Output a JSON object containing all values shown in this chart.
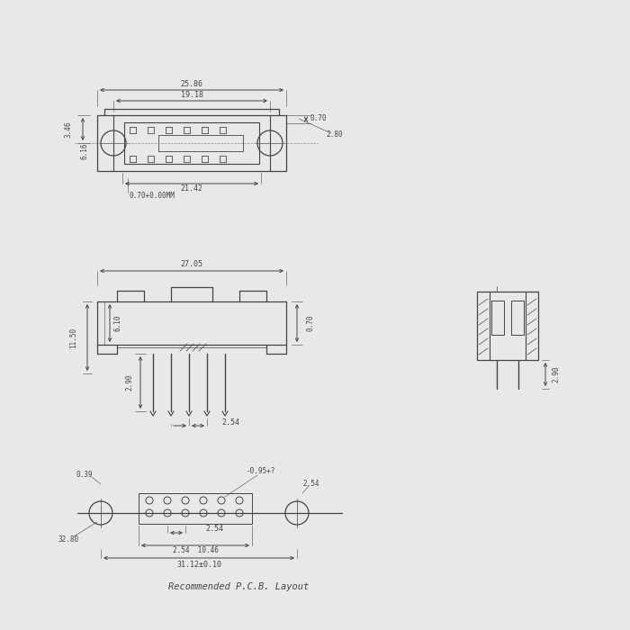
{
  "bg_color": "#e8e8e8",
  "line_color": "#444444",
  "dim_color": "#444444",
  "title": "Recommended P.C.B. Layout",
  "view1": {
    "dim_25_86": "25.86",
    "dim_19_18": "19.18",
    "dim_21_42": "21.42",
    "dim_0_70": "0.70",
    "dim_2_80": "2.80",
    "dim_3_46": "3.46",
    "dim_6_16": "6.16",
    "dim_note": "0.70+0.00MM"
  },
  "view2": {
    "dim_27_05": "27.05",
    "dim_11_50": "11.50",
    "dim_6_10": "6.10",
    "dim_2_90": "2.90",
    "dim_0_70": "0.70",
    "dim_2_54": "2.54"
  },
  "view3": {
    "dim_0_39": "0.39",
    "dim_32_80": "32.80",
    "dim_0_95": "-0.95+?",
    "dim_2_54_label": "2.54",
    "dim_2_54b": "2.54",
    "dim_10_46": "10.46",
    "dim_31_12": "31.12±0.10"
  },
  "view4": {
    "dim_2_90": "2.90"
  }
}
